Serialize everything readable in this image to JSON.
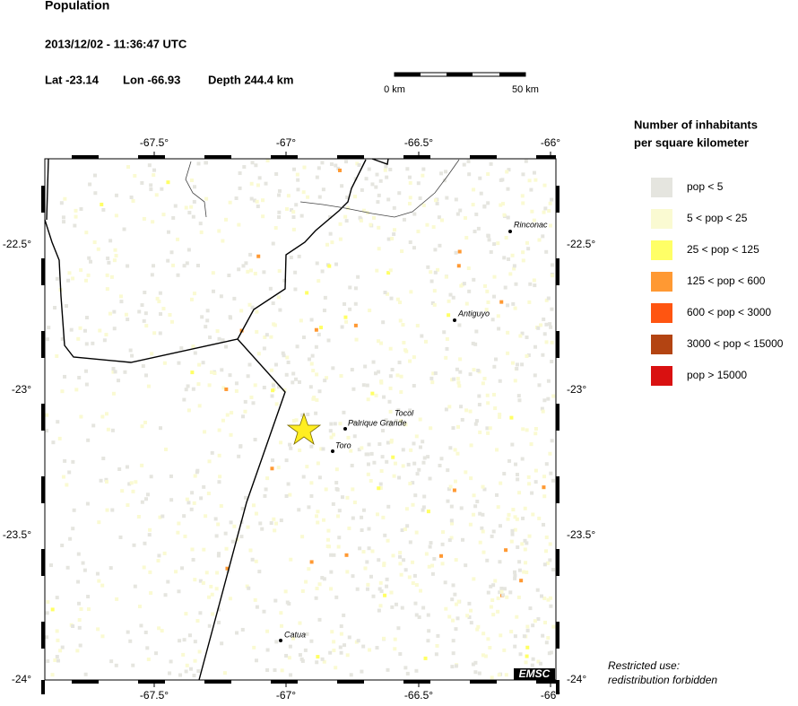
{
  "header": {
    "title": "Population",
    "datetime": "2013/12/02 - 11:36:47 UTC",
    "lat": "Lat -23.14",
    "lon": "Lon -66.93",
    "depth": "Depth 244.4 km"
  },
  "scale": {
    "start": "0 km",
    "end": "50 km"
  },
  "axes": {
    "lon_labels": [
      "-67.5°",
      "-67°",
      "-66.5°",
      "-66°"
    ],
    "lat_labels": [
      "-22.5°",
      "-23°",
      "-23.5°",
      "-24°"
    ]
  },
  "places": [
    {
      "label": "Rinconac"
    },
    {
      "label": "Antiguyo"
    },
    {
      "label": "Tocol"
    },
    {
      "label": "Palrique Grande"
    },
    {
      "label": "Toro"
    },
    {
      "label": "Catua"
    }
  ],
  "legend": {
    "title_line1": "Number of inhabitants",
    "title_line2": "per square kilometer",
    "items": [
      {
        "label": "pop < 5",
        "color": "#e5e5df"
      },
      {
        "label": "5 < pop < 25",
        "color": "#fafad2"
      },
      {
        "label": "25 < pop < 125",
        "color": "#ffff66"
      },
      {
        "label": "125 < pop < 600",
        "color": "#ff9933"
      },
      {
        "label": "600 < pop < 3000",
        "color": "#ff5511"
      },
      {
        "label": "3000 < pop < 15000",
        "color": "#b34412"
      },
      {
        "label": "pop > 15000",
        "color": "#d91111"
      }
    ]
  },
  "logo": "EMSC",
  "notice": {
    "line1": "Restricted use:",
    "line2": "redistribution forbidden"
  }
}
